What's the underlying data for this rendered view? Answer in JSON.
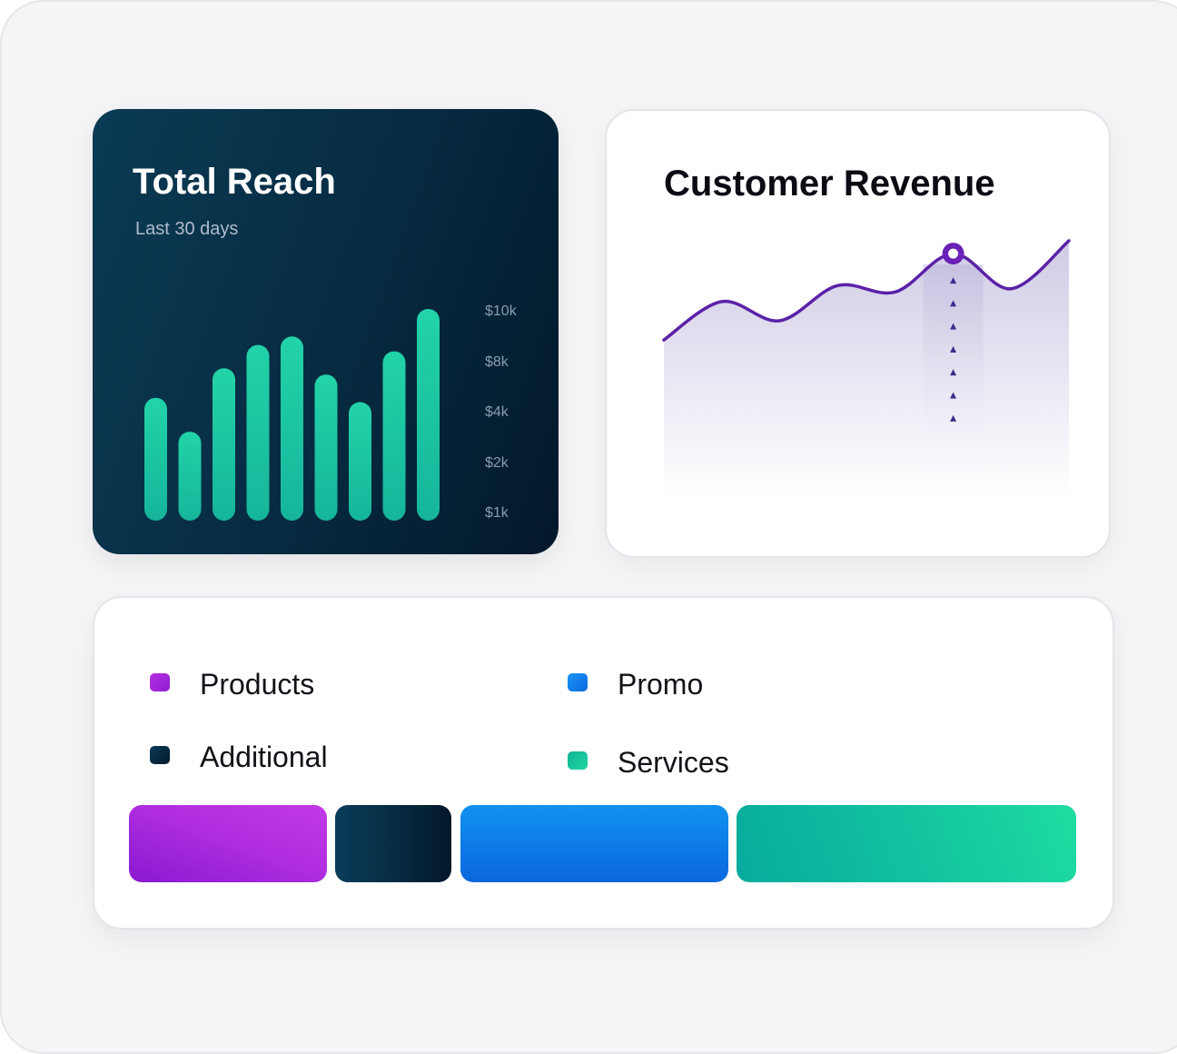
{
  "total_reach": {
    "title": "Total Reach",
    "subtitle": "Last 30 days",
    "y_tick_labels": [
      "$10k",
      "$8k",
      "$4k",
      "$2k",
      "$1k"
    ],
    "bar_color_top": "#1fcfa0",
    "bar_color_bottom": "#17b59a"
  },
  "customer_revenue": {
    "title": "Customer Revenue",
    "line_color": "#5b21a8",
    "area_color": "#cfcae6"
  },
  "legend": {
    "items": [
      {
        "label": "Products",
        "color": "#b52ee0"
      },
      {
        "label": "Promo",
        "color": "#0a7ff0"
      },
      {
        "label": "Additional",
        "color": "#073450"
      },
      {
        "label": "Services",
        "color": "#12c29b"
      }
    ]
  },
  "chart_data": [
    {
      "type": "bar",
      "title": "Total Reach",
      "subtitle": "Last 30 days",
      "y_tick_labels": [
        "$10k",
        "$8k",
        "$4k",
        "$2k",
        "$1k"
      ],
      "values": [
        0.58,
        0.42,
        0.72,
        0.83,
        0.87,
        0.69,
        0.56,
        0.8,
        1.0
      ]
    },
    {
      "type": "area",
      "title": "Customer Revenue",
      "values": [
        0.38,
        0.62,
        0.5,
        0.72,
        0.68,
        0.92,
        0.7,
        1.0
      ],
      "highlight_index": 5
    },
    {
      "type": "bar",
      "orientation": "stacked-horizontal",
      "categories": [
        "Products",
        "Additional",
        "Promo",
        "Services"
      ],
      "values": [
        0.21,
        0.12,
        0.29,
        0.37
      ]
    }
  ]
}
